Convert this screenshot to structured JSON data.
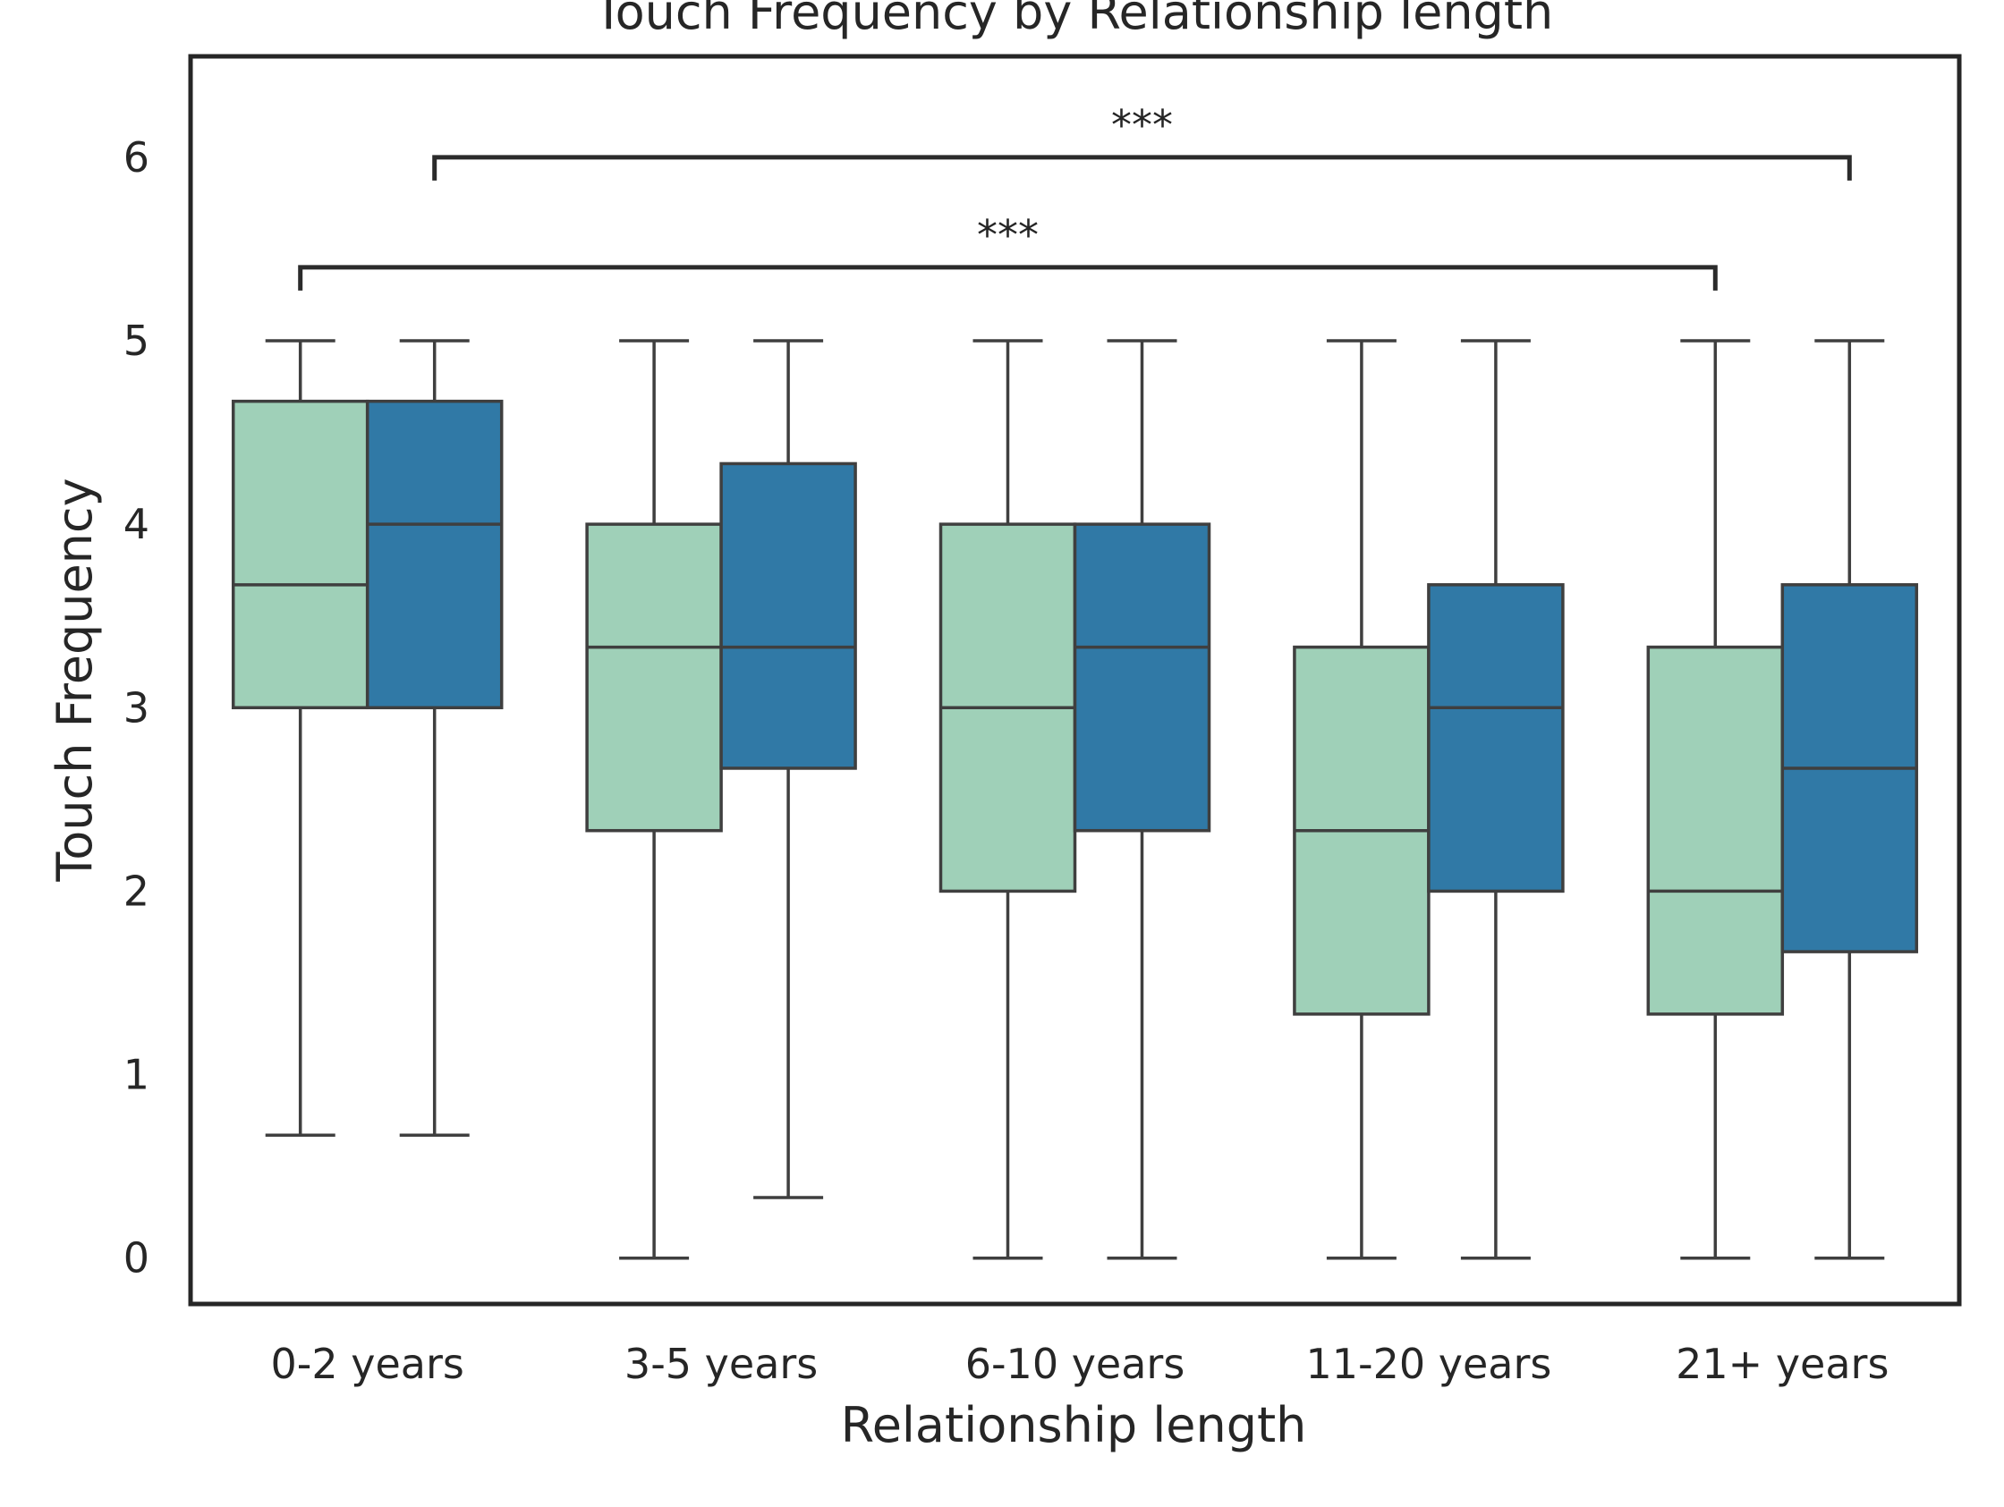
{
  "chart_data": {
    "type": "box",
    "title": "Touch Frequency by Relationship length",
    "xlabel": "Relationship length",
    "ylabel": "Touch Frequency",
    "categories": [
      "0-2 years",
      "3-5 years",
      "6-10 years",
      "11-20 years",
      "21+ years"
    ],
    "ylim": [
      -0.25,
      6.55
    ],
    "yticks": [
      0,
      1,
      2,
      3,
      4,
      5,
      6
    ],
    "grid": false,
    "legend": "none",
    "series": [
      {
        "color": "#9fd0b8",
        "boxes": [
          {
            "whislo": 0.67,
            "q1": 3.0,
            "med": 3.67,
            "q3": 4.67,
            "whishi": 5.0
          },
          {
            "whislo": 0.0,
            "q1": 2.33,
            "med": 3.33,
            "q3": 4.0,
            "whishi": 5.0
          },
          {
            "whislo": 0.0,
            "q1": 2.0,
            "med": 3.0,
            "q3": 4.0,
            "whishi": 5.0
          },
          {
            "whislo": 0.0,
            "q1": 1.33,
            "med": 2.33,
            "q3": 3.33,
            "whishi": 5.0
          },
          {
            "whislo": 0.0,
            "q1": 1.33,
            "med": 2.0,
            "q3": 3.33,
            "whishi": 5.0
          }
        ]
      },
      {
        "color": "#3079a6",
        "boxes": [
          {
            "whislo": 0.67,
            "q1": 3.0,
            "med": 4.0,
            "q3": 4.67,
            "whishi": 5.0
          },
          {
            "whislo": 0.33,
            "q1": 2.67,
            "med": 3.33,
            "q3": 4.33,
            "whishi": 5.0
          },
          {
            "whislo": 0.0,
            "q1": 2.33,
            "med": 3.33,
            "q3": 4.0,
            "whishi": 5.0
          },
          {
            "whislo": 0.0,
            "q1": 2.0,
            "med": 3.0,
            "q3": 3.67,
            "whishi": 5.0
          },
          {
            "whislo": 0.0,
            "q1": 1.67,
            "med": 2.67,
            "q3": 3.67,
            "whishi": 5.0
          }
        ]
      }
    ],
    "annotations": [
      {
        "label": "***",
        "from": {
          "category": 0,
          "series": 1
        },
        "to": {
          "category": 4,
          "series": 1
        },
        "y": 6.0
      },
      {
        "label": "***",
        "from": {
          "category": 0,
          "series": 0
        },
        "to": {
          "category": 4,
          "series": 0
        },
        "y": 5.4
      }
    ]
  }
}
